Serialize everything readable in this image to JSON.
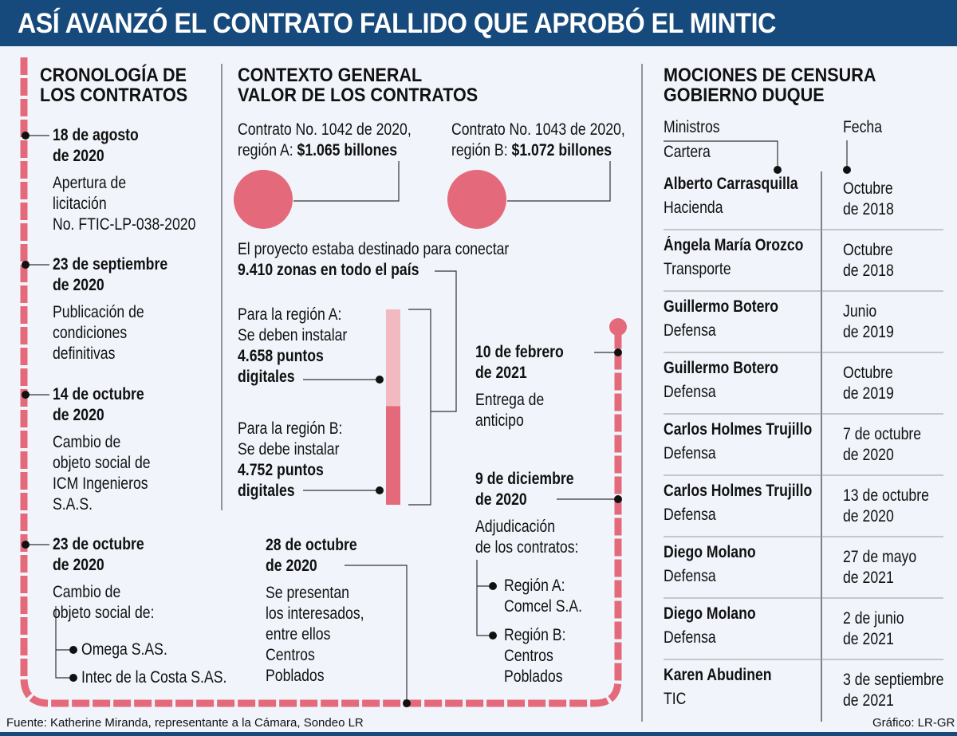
{
  "title": "ASÍ AVANZÓ EL CONTRATO FALLIDO QUE APROBÓ EL MINTIC",
  "colors": {
    "header": "#174a7c",
    "accent": "#e46a7b",
    "accent_light": "#f2b9c0",
    "background": "#f1f5fb"
  },
  "left": {
    "heading": [
      "CRONOLOGÍA DE",
      "LOS CONTRATOS"
    ],
    "events": [
      {
        "date": [
          "18 de agosto",
          "de 2020"
        ],
        "desc": [
          "Apertura de",
          "licitación",
          "No. FTIC-LP-038-2020"
        ]
      },
      {
        "date": [
          "23 de septiembre",
          "de 2020"
        ],
        "desc": [
          "Publicación de",
          "condiciones",
          "definitivas"
        ]
      },
      {
        "date": [
          "14 de octubre",
          "de 2020"
        ],
        "desc": [
          "Cambio de",
          "objeto social de",
          "ICM Ingenieros",
          "S.A.S."
        ]
      },
      {
        "date": [
          "23 de octubre",
          "de 2020"
        ],
        "desc": [
          "Cambio de",
          "objeto social de:"
        ],
        "items": [
          "Omega S.AS.",
          "Intec de la Costa S.AS."
        ]
      }
    ]
  },
  "middle": {
    "heading": [
      "CONTEXTO GENERAL",
      "VALOR DE LOS CONTRATOS"
    ],
    "contract_a": {
      "line1": "Contrato No. 1042 de 2020,",
      "prefix": "región A: ",
      "value": "$1.065 billones"
    },
    "contract_b": {
      "line1": "Contrato No. 1043 de 2020,",
      "prefix": "región B: ",
      "value": "$1.072 billones"
    },
    "project": "El proyecto estaba destinado para conectar",
    "zones": "9.410 zonas en todo el país",
    "region_a": {
      "lines": [
        "Para la región A:",
        "Se deben instalar"
      ],
      "bold": [
        "4.658 puntos",
        "digitales"
      ],
      "value": 4658
    },
    "region_b": {
      "lines": [
        "Para la región B:",
        "Se debe instalar"
      ],
      "bold": [
        "4.752 puntos",
        "digitales"
      ],
      "value": 4752
    },
    "event_oct28": {
      "date": [
        "28 de octubre",
        "de 2020"
      ],
      "desc": [
        "Se presentan",
        "los interesados,",
        "entre ellos",
        "Centros",
        "Poblados"
      ]
    },
    "event_feb10": {
      "date": [
        "10 de febrero",
        "de 2021"
      ],
      "desc": [
        "Entrega de",
        "anticipo"
      ]
    },
    "event_dec9": {
      "date": [
        "9 de diciembre",
        "de 2020"
      ],
      "desc": [
        "Adjudicación",
        "de los contratos:"
      ],
      "items": [
        [
          "Región A:",
          "Comcel S.A."
        ],
        [
          "Región B:",
          "Centros",
          "Poblados"
        ]
      ]
    }
  },
  "right": {
    "heading": [
      "MOCIONES DE CENSURA",
      "GOBIERNO DUQUE"
    ],
    "col_ministros": "Ministros",
    "col_cartera": "Cartera",
    "col_fecha": "Fecha",
    "rows": [
      {
        "name": "Alberto Carrasquilla",
        "cartera": "Hacienda",
        "fecha": [
          "Octubre",
          "de 2018"
        ]
      },
      {
        "name": "Ángela María Orozco",
        "cartera": "Transporte",
        "fecha": [
          "Octubre",
          "de 2018"
        ]
      },
      {
        "name": "Guillermo Botero",
        "cartera": "Defensa",
        "fecha": [
          "Junio",
          "de 2019"
        ]
      },
      {
        "name": "Guillermo Botero",
        "cartera": "Defensa",
        "fecha": [
          "Octubre",
          "de 2019"
        ]
      },
      {
        "name": "Carlos Holmes Trujillo",
        "cartera": "Defensa",
        "fecha": [
          "7 de octubre",
          "de 2020"
        ]
      },
      {
        "name": "Carlos Holmes Trujillo",
        "cartera": "Defensa",
        "fecha": [
          "13 de octubre",
          "de 2020"
        ]
      },
      {
        "name": "Diego Molano",
        "cartera": "Defensa",
        "fecha": [
          "27 de mayo",
          "de 2021"
        ]
      },
      {
        "name": "Diego Molano",
        "cartera": "Defensa",
        "fecha": [
          "2 de junio",
          "de 2021"
        ]
      },
      {
        "name": "Karen Abudinen",
        "cartera": "TIC",
        "fecha": [
          "3 de septiembre",
          "de 2021"
        ]
      }
    ]
  },
  "source": "Fuente: Katherine Miranda, representante a la Cámara,  Sondeo LR",
  "credit": "Gráfico: LR-GR"
}
